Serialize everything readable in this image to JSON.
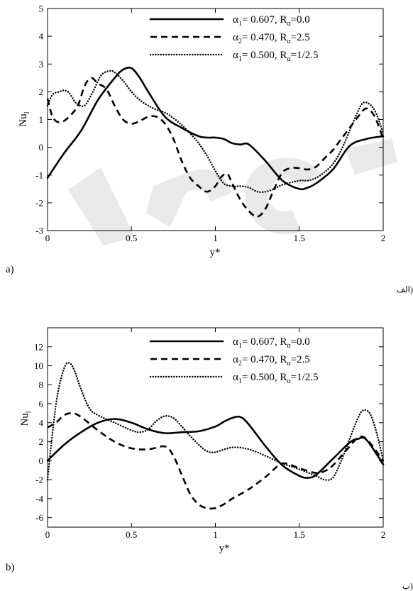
{
  "figure": {
    "panel_a_label": "a)",
    "panel_b_label": "b)",
    "panel_a_label_fa": "الف)",
    "panel_b_label_fa": "ب)"
  },
  "chart_data": [
    {
      "type": "line",
      "xlabel": "y*",
      "ylabel": "Nu",
      "ylabel_sub": "l",
      "xlim": [
        0,
        2
      ],
      "ylim": [
        -3,
        5
      ],
      "xticks": [
        0,
        0.5,
        1,
        1.5,
        2
      ],
      "yticks": [
        -3,
        -2,
        -1,
        0,
        1,
        2,
        3,
        4,
        5
      ],
      "legend_position": "top-right",
      "grid": false,
      "series": [
        {
          "name": "α1= 0.607, Rα=0.0",
          "name_parts": [
            "α",
            "1",
            "= 0.607, R",
            "α",
            "=0.0"
          ],
          "style": "solid",
          "x": [
            0,
            0.1,
            0.2,
            0.3,
            0.4,
            0.45,
            0.5,
            0.55,
            0.6,
            0.7,
            0.8,
            0.9,
            0.95,
            1.0,
            1.05,
            1.1,
            1.15,
            1.2,
            1.3,
            1.4,
            1.5,
            1.55,
            1.6,
            1.7,
            1.8,
            1.9,
            2.0
          ],
          "y": [
            -1.1,
            -0.2,
            0.6,
            1.7,
            2.5,
            2.8,
            2.85,
            2.5,
            2.0,
            1.1,
            0.7,
            0.4,
            0.35,
            0.35,
            0.3,
            0.15,
            0.1,
            0.1,
            -0.5,
            -1.2,
            -1.5,
            -1.45,
            -1.3,
            -0.8,
            0.05,
            0.3,
            0.4
          ]
        },
        {
          "name": "α2= 0.470, Rα=2.5",
          "name_parts": [
            "α",
            "2",
            "= 0.470, R",
            "α",
            "=2.5"
          ],
          "style": "dashed",
          "x": [
            0,
            0.03,
            0.07,
            0.12,
            0.18,
            0.22,
            0.26,
            0.3,
            0.35,
            0.4,
            0.45,
            0.5,
            0.55,
            0.6,
            0.65,
            0.7,
            0.75,
            0.8,
            0.85,
            0.9,
            0.95,
            1.0,
            1.03,
            1.07,
            1.1,
            1.15,
            1.2,
            1.25,
            1.3,
            1.35,
            1.4,
            1.45,
            1.5,
            1.55,
            1.6,
            1.65,
            1.7,
            1.75,
            1.8,
            1.85,
            1.9,
            1.95,
            2.0
          ],
          "y": [
            1.75,
            1.1,
            0.9,
            1.05,
            1.5,
            2.2,
            2.5,
            2.3,
            2.1,
            1.5,
            1.0,
            0.85,
            0.95,
            1.1,
            1.1,
            0.85,
            0.3,
            -0.5,
            -1.1,
            -1.4,
            -1.6,
            -1.4,
            -1.1,
            -0.95,
            -1.3,
            -1.9,
            -2.3,
            -2.5,
            -2.2,
            -1.5,
            -0.9,
            -0.75,
            -0.75,
            -0.8,
            -0.7,
            -0.4,
            -0.1,
            0.3,
            0.7,
            1.1,
            1.4,
            1.1,
            0.3
          ]
        },
        {
          "name": "α1= 0.500, Rα=1/2.5",
          "name_parts": [
            "α",
            "1",
            "= 0.500, R",
            "α",
            "=1/2.5"
          ],
          "style": "dotted",
          "x": [
            0,
            0.03,
            0.07,
            0.1,
            0.13,
            0.17,
            0.22,
            0.27,
            0.32,
            0.37,
            0.4,
            0.45,
            0.5,
            0.55,
            0.6,
            0.65,
            0.7,
            0.75,
            0.8,
            0.85,
            0.9,
            0.95,
            1.0,
            1.05,
            1.1,
            1.15,
            1.2,
            1.25,
            1.3,
            1.35,
            1.4,
            1.5,
            1.55,
            1.6,
            1.65,
            1.7,
            1.75,
            1.8,
            1.85,
            1.88,
            1.92,
            1.96,
            2.0
          ],
          "y": [
            1.5,
            1.9,
            2.0,
            2.05,
            1.95,
            1.6,
            1.5,
            2.0,
            2.6,
            2.75,
            2.7,
            2.4,
            2.0,
            1.7,
            1.5,
            1.35,
            1.25,
            1.05,
            0.8,
            0.5,
            0.15,
            -0.3,
            -0.85,
            -1.3,
            -1.4,
            -1.4,
            -1.45,
            -1.6,
            -1.6,
            -1.5,
            -1.35,
            -1.2,
            -1.2,
            -1.1,
            -0.9,
            -0.6,
            -0.1,
            0.6,
            1.3,
            1.6,
            1.55,
            1.2,
            0.5
          ]
        }
      ]
    },
    {
      "type": "line",
      "xlabel": "y*",
      "ylabel": "Nu",
      "ylabel_sub": "l",
      "xlim": [
        0,
        2
      ],
      "ylim": [
        -7,
        14
      ],
      "xticks": [
        0,
        0.5,
        1,
        1.5,
        2
      ],
      "yticks": [
        -6,
        -4,
        -2,
        0,
        2,
        4,
        6,
        8,
        10,
        12
      ],
      "legend_position": "top-right",
      "grid": false,
      "series": [
        {
          "name": "α1= 0.607, Rα=0.0",
          "name_parts": [
            "α",
            "1",
            "= 0.607, R",
            "α",
            "=0.0"
          ],
          "style": "solid",
          "x": [
            0,
            0.1,
            0.2,
            0.3,
            0.4,
            0.5,
            0.6,
            0.7,
            0.8,
            0.9,
            1.0,
            1.05,
            1.1,
            1.15,
            1.2,
            1.3,
            1.4,
            1.5,
            1.55,
            1.6,
            1.7,
            1.8,
            1.85,
            1.9,
            2.0
          ],
          "y": [
            0,
            1.7,
            3.0,
            4.0,
            4.4,
            4.0,
            3.3,
            2.9,
            3.0,
            3.1,
            3.6,
            4.1,
            4.5,
            4.6,
            3.8,
            1.5,
            -0.5,
            -1.6,
            -1.8,
            -1.5,
            0.2,
            1.9,
            2.3,
            2.2,
            -0.4
          ]
        },
        {
          "name": "α2= 0.470, Rα=2.5",
          "name_parts": [
            "α",
            "2",
            "= 0.470, R",
            "α",
            "=2.5"
          ],
          "style": "dashed",
          "x": [
            0,
            0.05,
            0.1,
            0.15,
            0.2,
            0.3,
            0.4,
            0.5,
            0.6,
            0.7,
            0.75,
            0.8,
            0.85,
            0.9,
            0.95,
            1.0,
            1.05,
            1.1,
            1.2,
            1.3,
            1.4,
            1.5,
            1.6,
            1.65,
            1.7,
            1.8,
            1.85,
            1.9,
            2.0
          ],
          "y": [
            3.5,
            4.0,
            4.8,
            5.0,
            4.6,
            3.2,
            2.0,
            1.3,
            1.2,
            1.5,
            0.5,
            -1.5,
            -3.5,
            -4.6,
            -5.0,
            -5.0,
            -4.6,
            -4.0,
            -3.0,
            -1.7,
            -0.3,
            -0.8,
            -1.3,
            -1.1,
            -0.5,
            1.5,
            2.4,
            2.3,
            0
          ]
        },
        {
          "name": "α1= 0.500, Rα=1/2.5",
          "name_parts": [
            "α",
            "1",
            "= 0.500, R",
            "α",
            "=1/2.5"
          ],
          "style": "dotted",
          "x": [
            0,
            0.03,
            0.06,
            0.1,
            0.13,
            0.16,
            0.2,
            0.25,
            0.3,
            0.4,
            0.5,
            0.55,
            0.6,
            0.65,
            0.7,
            0.75,
            0.8,
            0.85,
            0.9,
            0.95,
            1.0,
            1.1,
            1.2,
            1.3,
            1.4,
            1.5,
            1.6,
            1.65,
            1.7,
            1.75,
            1.8,
            1.85,
            1.88,
            1.92,
            1.96,
            2.0
          ],
          "y": [
            -2.0,
            3.0,
            7.0,
            9.8,
            10.3,
            9.5,
            7.5,
            5.5,
            4.8,
            4.0,
            3.2,
            3.0,
            3.3,
            4.2,
            4.7,
            4.5,
            3.6,
            2.6,
            1.7,
            1.0,
            0.9,
            1.4,
            1.2,
            0.5,
            -0.3,
            -0.9,
            -1.6,
            -2.0,
            -1.8,
            0,
            2.3,
            4.5,
            5.3,
            5.0,
            3.0,
            0
          ]
        }
      ]
    }
  ]
}
